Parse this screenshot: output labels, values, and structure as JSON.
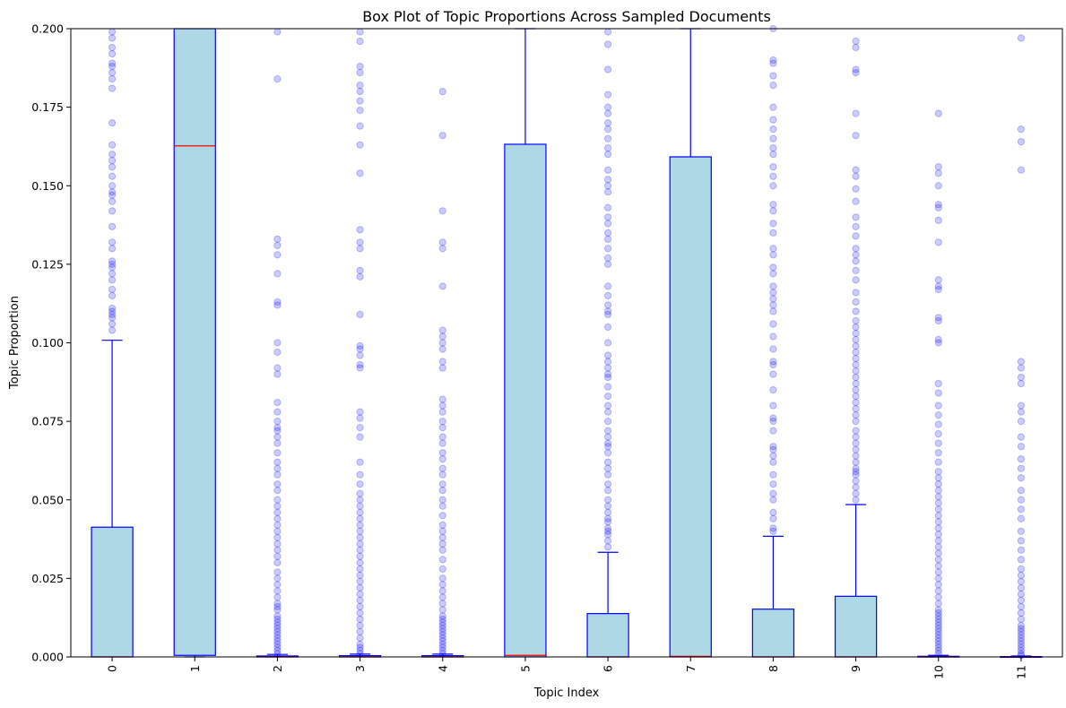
{
  "chart_data": {
    "type": "box",
    "title": "Box Plot of Topic Proportions Across Sampled Documents",
    "xlabel": "Topic Index",
    "ylabel": "Topic Proportion",
    "ylim": [
      0,
      0.2
    ],
    "yticks": [
      "0.000",
      "0.025",
      "0.050",
      "0.075",
      "0.100",
      "0.125",
      "0.150",
      "0.175",
      "0.200"
    ],
    "categories": [
      "0",
      "1",
      "2",
      "3",
      "4",
      "5",
      "6",
      "7",
      "8",
      "9",
      "10",
      "11"
    ],
    "grid": false,
    "colors": {
      "box_fill": "#add8e6",
      "box_edge": "#0000ff",
      "median": "#ff0000",
      "whisker": "#0000ff",
      "outlier": "#0000ff"
    },
    "boxes": [
      {
        "q1": 0.0,
        "median": 0.0,
        "q3": 0.0413,
        "whisker_low": 0.0,
        "whisker_high": 0.1008,
        "outliers": [
          0.104,
          0.106,
          0.108,
          0.109,
          0.11,
          0.111,
          0.115,
          0.117,
          0.12,
          0.122,
          0.124,
          0.125,
          0.126,
          0.13,
          0.132,
          0.137,
          0.142,
          0.145,
          0.147,
          0.148,
          0.15,
          0.153,
          0.156,
          0.158,
          0.16,
          0.163,
          0.17,
          0.181,
          0.184,
          0.186,
          0.188,
          0.189,
          0.192,
          0.194,
          0.197,
          0.199
        ]
      },
      {
        "q1": 0.0005,
        "median": 0.1627,
        "q3": 0.2,
        "whisker_low": 0.0,
        "whisker_high": 0.2,
        "outliers": []
      },
      {
        "q1": 0.0,
        "median": 0.0,
        "q3": 0.0003,
        "whisker_low": 0.0,
        "whisker_high": 0.0008,
        "outliers": [
          0.001,
          0.002,
          0.003,
          0.004,
          0.005,
          0.006,
          0.007,
          0.008,
          0.009,
          0.01,
          0.011,
          0.012,
          0.013,
          0.015,
          0.016,
          0.017,
          0.019,
          0.021,
          0.023,
          0.025,
          0.027,
          0.03,
          0.032,
          0.034,
          0.036,
          0.038,
          0.04,
          0.042,
          0.044,
          0.046,
          0.048,
          0.05,
          0.053,
          0.055,
          0.058,
          0.06,
          0.062,
          0.065,
          0.068,
          0.07,
          0.072,
          0.073,
          0.075,
          0.078,
          0.081,
          0.09,
          0.092,
          0.097,
          0.1,
          0.112,
          0.113,
          0.122,
          0.128,
          0.131,
          0.133,
          0.184,
          0.199
        ]
      },
      {
        "q1": 0.0,
        "median": 0.0,
        "q3": 0.0004,
        "whisker_low": 0.0,
        "whisker_high": 0.0009,
        "outliers": [
          0.001,
          0.002,
          0.003,
          0.004,
          0.006,
          0.008,
          0.01,
          0.012,
          0.014,
          0.016,
          0.018,
          0.02,
          0.022,
          0.024,
          0.026,
          0.028,
          0.03,
          0.032,
          0.034,
          0.036,
          0.038,
          0.04,
          0.042,
          0.044,
          0.046,
          0.048,
          0.05,
          0.052,
          0.055,
          0.058,
          0.062,
          0.07,
          0.073,
          0.076,
          0.078,
          0.092,
          0.093,
          0.096,
          0.098,
          0.099,
          0.109,
          0.121,
          0.123,
          0.13,
          0.132,
          0.136,
          0.154,
          0.163,
          0.169,
          0.174,
          0.177,
          0.18,
          0.182,
          0.186,
          0.188,
          0.196,
          0.199
        ]
      },
      {
        "q1": 0.0,
        "median": 0.0,
        "q3": 0.0004,
        "whisker_low": 0.0,
        "whisker_high": 0.0009,
        "outliers": [
          0.001,
          0.002,
          0.003,
          0.004,
          0.005,
          0.006,
          0.007,
          0.008,
          0.009,
          0.01,
          0.011,
          0.012,
          0.013,
          0.015,
          0.017,
          0.019,
          0.021,
          0.023,
          0.025,
          0.028,
          0.031,
          0.034,
          0.036,
          0.038,
          0.04,
          0.042,
          0.045,
          0.048,
          0.05,
          0.053,
          0.055,
          0.058,
          0.06,
          0.063,
          0.065,
          0.068,
          0.07,
          0.073,
          0.075,
          0.078,
          0.08,
          0.082,
          0.092,
          0.094,
          0.098,
          0.1,
          0.102,
          0.104,
          0.118,
          0.13,
          0.132,
          0.142,
          0.166,
          0.18
        ]
      },
      {
        "q1": 0.0,
        "median": 0.0005,
        "q3": 0.1632,
        "whisker_low": 0.0,
        "whisker_high": 0.2,
        "outliers": []
      },
      {
        "q1": 0.0,
        "median": 0.0,
        "q3": 0.0138,
        "whisker_low": 0.0,
        "whisker_high": 0.0333,
        "outliers": [
          0.035,
          0.037,
          0.039,
          0.04,
          0.041,
          0.043,
          0.044,
          0.046,
          0.048,
          0.05,
          0.053,
          0.055,
          0.058,
          0.06,
          0.062,
          0.065,
          0.067,
          0.068,
          0.07,
          0.072,
          0.075,
          0.078,
          0.08,
          0.083,
          0.086,
          0.089,
          0.09,
          0.092,
          0.094,
          0.096,
          0.1,
          0.105,
          0.109,
          0.11,
          0.112,
          0.115,
          0.118,
          0.125,
          0.127,
          0.13,
          0.133,
          0.135,
          0.138,
          0.14,
          0.143,
          0.148,
          0.15,
          0.152,
          0.155,
          0.16,
          0.162,
          0.165,
          0.168,
          0.17,
          0.173,
          0.175,
          0.179,
          0.187,
          0.195,
          0.199
        ]
      },
      {
        "q1": 0.0,
        "median": 0.0002,
        "q3": 0.1592,
        "whisker_low": 0.0,
        "whisker_high": 0.2,
        "outliers": []
      },
      {
        "q1": 0.0,
        "median": 0.0,
        "q3": 0.0152,
        "whisker_low": 0.0,
        "whisker_high": 0.0384,
        "outliers": [
          0.04,
          0.041,
          0.044,
          0.046,
          0.05,
          0.052,
          0.055,
          0.058,
          0.062,
          0.064,
          0.066,
          0.067,
          0.072,
          0.075,
          0.076,
          0.08,
          0.085,
          0.09,
          0.093,
          0.094,
          0.098,
          0.102,
          0.106,
          0.11,
          0.112,
          0.114,
          0.116,
          0.118,
          0.122,
          0.124,
          0.128,
          0.13,
          0.135,
          0.138,
          0.142,
          0.144,
          0.15,
          0.153,
          0.156,
          0.16,
          0.162,
          0.165,
          0.168,
          0.171,
          0.175,
          0.182,
          0.185,
          0.189,
          0.19,
          0.2
        ]
      },
      {
        "q1": 0.0,
        "median": 0.0,
        "q3": 0.0193,
        "whisker_low": 0.0,
        "whisker_high": 0.0485,
        "outliers": [
          0.05,
          0.052,
          0.054,
          0.056,
          0.058,
          0.059,
          0.06,
          0.062,
          0.064,
          0.066,
          0.068,
          0.07,
          0.072,
          0.075,
          0.077,
          0.079,
          0.081,
          0.083,
          0.085,
          0.087,
          0.089,
          0.091,
          0.093,
          0.095,
          0.097,
          0.099,
          0.101,
          0.103,
          0.105,
          0.107,
          0.11,
          0.113,
          0.116,
          0.12,
          0.123,
          0.126,
          0.128,
          0.13,
          0.134,
          0.137,
          0.14,
          0.145,
          0.149,
          0.153,
          0.155,
          0.166,
          0.173,
          0.186,
          0.187,
          0.194,
          0.196
        ]
      },
      {
        "q1": 0.0,
        "median": 0.0,
        "q3": 0.0002,
        "whisker_low": 0.0,
        "whisker_high": 0.0005,
        "outliers": [
          0.001,
          0.002,
          0.003,
          0.004,
          0.005,
          0.006,
          0.007,
          0.008,
          0.009,
          0.01,
          0.011,
          0.012,
          0.013,
          0.014,
          0.015,
          0.017,
          0.019,
          0.021,
          0.023,
          0.025,
          0.027,
          0.029,
          0.031,
          0.033,
          0.035,
          0.037,
          0.039,
          0.041,
          0.043,
          0.045,
          0.047,
          0.049,
          0.051,
          0.053,
          0.055,
          0.057,
          0.059,
          0.062,
          0.065,
          0.068,
          0.071,
          0.074,
          0.077,
          0.08,
          0.084,
          0.087,
          0.1,
          0.101,
          0.107,
          0.108,
          0.117,
          0.118,
          0.12,
          0.132,
          0.139,
          0.143,
          0.144,
          0.15,
          0.154,
          0.156,
          0.173
        ]
      },
      {
        "q1": 0.0,
        "median": 0.0,
        "q3": 0.0001,
        "whisker_low": 0.0,
        "whisker_high": 0.0003,
        "outliers": [
          0.0005,
          0.001,
          0.002,
          0.003,
          0.004,
          0.005,
          0.006,
          0.007,
          0.008,
          0.009,
          0.01,
          0.012,
          0.014,
          0.016,
          0.018,
          0.02,
          0.022,
          0.024,
          0.026,
          0.028,
          0.031,
          0.034,
          0.037,
          0.04,
          0.044,
          0.047,
          0.05,
          0.053,
          0.057,
          0.06,
          0.063,
          0.067,
          0.07,
          0.075,
          0.078,
          0.08,
          0.087,
          0.089,
          0.092,
          0.094,
          0.155,
          0.164,
          0.168,
          0.197
        ]
      }
    ]
  }
}
